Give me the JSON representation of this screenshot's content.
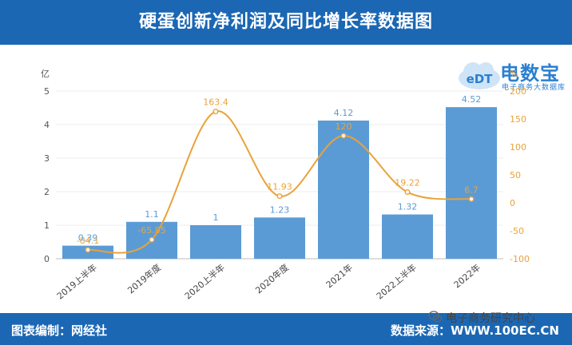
{
  "header": {
    "title": "硬蛋创新净利润及同比增长率数据图"
  },
  "footer": {
    "left": "图表编制：网经社",
    "right": "数据来源：WWW.100EC.CN"
  },
  "logo": {
    "text": "电数宝",
    "sub": "电子商务大数据库",
    "icon_text": "eDT"
  },
  "watermark": {
    "text": "电子商务研究中心"
  },
  "chart_data": {
    "type": "bar+line",
    "categories": [
      "2019上半年",
      "2019年度",
      "2020上半年",
      "2020年度",
      "2021年",
      "2022上半年",
      "2022年"
    ],
    "series": [
      {
        "name": "",
        "type": "bar",
        "axis": "left",
        "values": [
          0.39,
          1.1,
          1,
          1.23,
          4.12,
          1.32,
          4.52
        ],
        "labels": [
          "0.39",
          "1.1",
          "1",
          "1.23",
          "4.12",
          "1.32",
          "4.52"
        ]
      },
      {
        "name": "",
        "type": "line",
        "axis": "right",
        "values": [
          -84.1,
          -65.85,
          163.4,
          11.93,
          120,
          19.22,
          6.7
        ],
        "labels": [
          "-84.1",
          "-65.85",
          "163.4",
          "11.93",
          "120",
          "19.22",
          "6.7"
        ]
      }
    ],
    "ylabel_left": "亿",
    "ylabel_right": "%",
    "ylim_left": [
      0,
      5
    ],
    "ylim_right": [
      -100,
      200
    ],
    "yticks_left": [
      0,
      1,
      2,
      3,
      4,
      5
    ],
    "yticks_right": [
      -100,
      -50,
      0,
      50,
      100,
      150,
      200
    ],
    "colors": {
      "bar": "#5b9bd5",
      "line": "#e8a33a",
      "bar_label": "#5b9bd5",
      "line_label": "#e8a33a"
    },
    "grid": true
  }
}
